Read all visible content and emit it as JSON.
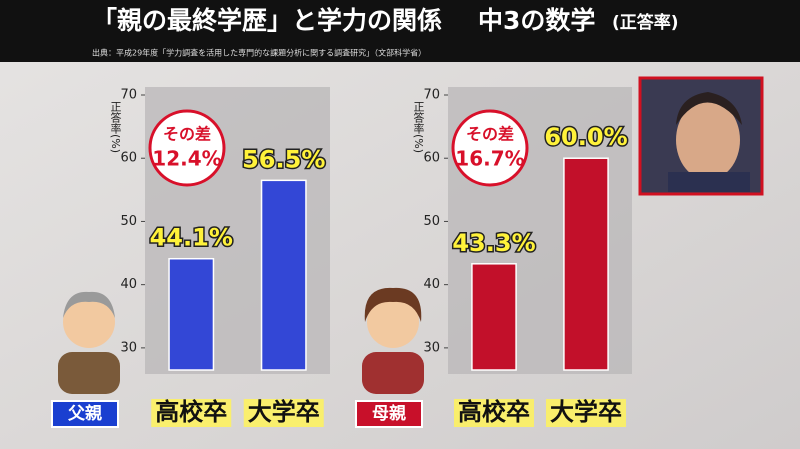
{
  "header": {
    "title": "「親の最終学歴」と学力の関係",
    "subtitle": "中3の数学",
    "note": "(正答率)",
    "source": "出典：平成29年度「学力調査を活用した専門的な課題分析に関する調査研究」（文部科学省）"
  },
  "chart_data": [
    {
      "type": "bar",
      "group_label": "父親",
      "y_label": "正答率(%)",
      "categories": [
        "高校卒",
        "大学卒"
      ],
      "values": [
        44.1,
        56.5
      ],
      "value_labels": [
        "44.1%",
        "56.5%"
      ],
      "color": "#3347d6",
      "difference": {
        "label": "その差",
        "value": 12.4,
        "value_label": "12.4%"
      },
      "ylim": [
        26.5,
        70
      ],
      "yticks": [
        30,
        40,
        50,
        60,
        70
      ]
    },
    {
      "type": "bar",
      "group_label": "母親",
      "y_label": "正答率(%)",
      "categories": [
        "高校卒",
        "大学卒"
      ],
      "values": [
        43.3,
        60.0
      ],
      "value_labels": [
        "43.3%",
        "60.0%"
      ],
      "color": "#c2102a",
      "difference": {
        "label": "その差",
        "value": 16.7,
        "value_label": "16.7%"
      },
      "ylim": [
        26.5,
        70
      ],
      "yticks": [
        30,
        40,
        50,
        60,
        70
      ]
    }
  ]
}
